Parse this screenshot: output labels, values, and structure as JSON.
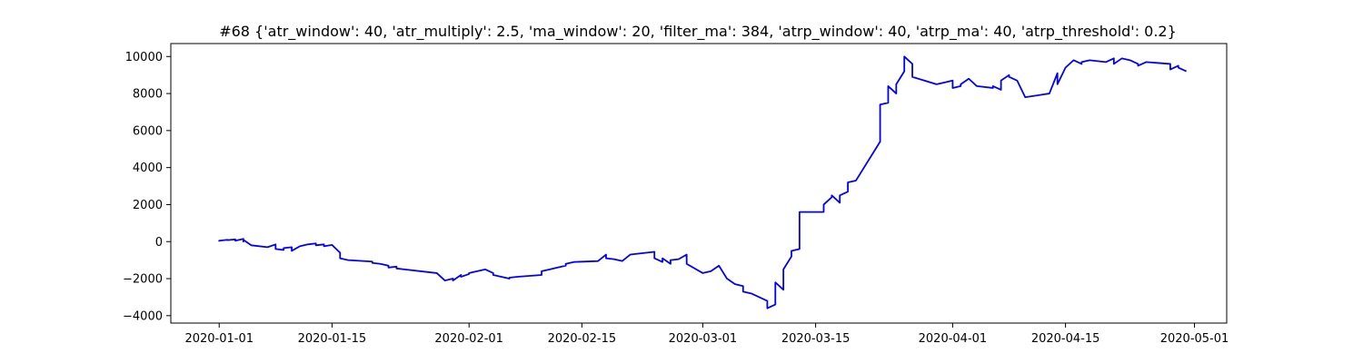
{
  "chart_data": {
    "type": "line",
    "title": "#68 {'atr_window': 40, 'atr_multiply': 2.5, 'ma_window': 20, 'filter_ma': 384, 'atrp_window': 40, 'atrp_ma': 40, 'atrp_threshold': 0.2}",
    "xlabel": "",
    "ylabel": "",
    "xlim": [
      "2019-12-26",
      "2020-05-05"
    ],
    "ylim": [
      -4400,
      10700
    ],
    "grid": false,
    "legend": "none",
    "x_ticks": [
      "2020-01-01",
      "2020-01-15",
      "2020-02-01",
      "2020-02-15",
      "2020-03-01",
      "2020-03-15",
      "2020-04-01",
      "2020-04-15",
      "2020-05-01"
    ],
    "y_ticks": [
      -4000,
      -2000,
      0,
      2000,
      4000,
      6000,
      8000,
      10000
    ],
    "series": [
      {
        "color": "#0000ff",
        "x": [
          "2020-01-01",
          "2020-01-01",
          "2020-01-02",
          "2020-01-02",
          "2020-01-03",
          "2020-01-03",
          "2020-01-04",
          "2020-01-04",
          "2020-01-04",
          "2020-01-05",
          "2020-01-07",
          "2020-01-08",
          "2020-01-08",
          "2020-01-09",
          "2020-01-09",
          "2020-01-10",
          "2020-01-10",
          "2020-01-11",
          "2020-01-12",
          "2020-01-13",
          "2020-01-13",
          "2020-01-14",
          "2020-01-14",
          "2020-01-15",
          "2020-01-16",
          "2020-01-16",
          "2020-01-17",
          "2020-01-20",
          "2020-01-20",
          "2020-01-20",
          "2020-01-21",
          "2020-01-22",
          "2020-01-22",
          "2020-01-23",
          "2020-01-23",
          "2020-01-24",
          "2020-01-28",
          "2020-01-29",
          "2020-01-30",
          "2020-01-30",
          "2020-01-31",
          "2020-01-31",
          "2020-02-01",
          "2020-02-01",
          "2020-02-03",
          "2020-02-04",
          "2020-02-04",
          "2020-02-05",
          "2020-02-06",
          "2020-02-06",
          "2020-02-07",
          "2020-02-10",
          "2020-02-10",
          "2020-02-11",
          "2020-02-12",
          "2020-02-13",
          "2020-02-13",
          "2020-02-14",
          "2020-02-17",
          "2020-02-18",
          "2020-02-18",
          "2020-02-19",
          "2020-02-20",
          "2020-02-21",
          "2020-02-22",
          "2020-02-24",
          "2020-02-24",
          "2020-02-25",
          "2020-02-25",
          "2020-02-26",
          "2020-02-26",
          "2020-02-27",
          "2020-02-28",
          "2020-02-28",
          "2020-03-01",
          "2020-03-02",
          "2020-03-03",
          "2020-03-04",
          "2020-03-05",
          "2020-03-06",
          "2020-03-06",
          "2020-03-07",
          "2020-03-09",
          "2020-03-09",
          "2020-03-10",
          "2020-03-10",
          "2020-03-11",
          "2020-03-11",
          "2020-03-12",
          "2020-03-12",
          "2020-03-13",
          "2020-03-13",
          "2020-03-16",
          "2020-03-16",
          "2020-03-17",
          "2020-03-17",
          "2020-03-18",
          "2020-03-18",
          "2020-03-19",
          "2020-03-19",
          "2020-03-20",
          "2020-03-20",
          "2020-03-23",
          "2020-03-23",
          "2020-03-24",
          "2020-03-24",
          "2020-03-25",
          "2020-03-25",
          "2020-03-26",
          "2020-03-26",
          "2020-03-27",
          "2020-03-27",
          "2020-03-30",
          "2020-03-31",
          "2020-04-01",
          "2020-04-01",
          "2020-04-02",
          "2020-04-02",
          "2020-04-03",
          "2020-04-04",
          "2020-04-06",
          "2020-04-06",
          "2020-04-07",
          "2020-04-07",
          "2020-04-08",
          "2020-04-08",
          "2020-04-09",
          "2020-04-10",
          "2020-04-13",
          "2020-04-14",
          "2020-04-14",
          "2020-04-15",
          "2020-04-16",
          "2020-04-17",
          "2020-04-17",
          "2020-04-18",
          "2020-04-20",
          "2020-04-21",
          "2020-04-21",
          "2020-04-22",
          "2020-04-23",
          "2020-04-24",
          "2020-04-24",
          "2020-04-25",
          "2020-04-28",
          "2020-04-28",
          "2020-04-29",
          "2020-04-29",
          "2020-04-30"
        ],
        "values": [
          0,
          50,
          100,
          80,
          120,
          50,
          150,
          0,
          100,
          -200,
          -300,
          -150,
          -400,
          -450,
          -350,
          -300,
          -500,
          -250,
          -150,
          -100,
          -200,
          -150,
          -250,
          -180,
          -600,
          -900,
          -1000,
          -1080,
          -1100,
          -1150,
          -1200,
          -1300,
          -1400,
          -1350,
          -1450,
          -1500,
          -1700,
          -2100,
          -2000,
          -2100,
          -1800,
          -1900,
          -1750,
          -1700,
          -1500,
          -1700,
          -1800,
          -1900,
          -2000,
          -1950,
          -1900,
          -1800,
          -1600,
          -1500,
          -1400,
          -1300,
          -1200,
          -1100,
          -1050,
          -700,
          -900,
          -950,
          -1050,
          -700,
          -650,
          -550,
          -900,
          -1100,
          -900,
          -1200,
          -1000,
          -950,
          -700,
          -1200,
          -1700,
          -1600,
          -1300,
          -2000,
          -2300,
          -2400,
          -2700,
          -2800,
          -3200,
          -3600,
          -3400,
          -2200,
          -2600,
          -1500,
          -800,
          -500,
          -400,
          1600,
          1600,
          2000,
          2400,
          2500,
          2100,
          2500,
          2700,
          3200,
          3300,
          3300,
          5400,
          7400,
          7500,
          8400,
          8000,
          8500,
          9200,
          10000,
          9600,
          8900,
          8500,
          8600,
          8700,
          8300,
          8400,
          8500,
          8800,
          8400,
          8300,
          8400,
          8200,
          8700,
          9000,
          8900,
          8700,
          7800,
          8000,
          9100,
          8500,
          9400,
          9800,
          9600,
          9700,
          9800,
          9700,
          9900,
          9600,
          9900,
          9800,
          9600,
          9500,
          9700,
          9600,
          9300,
          9500,
          9400,
          9200
        ]
      }
    ]
  }
}
